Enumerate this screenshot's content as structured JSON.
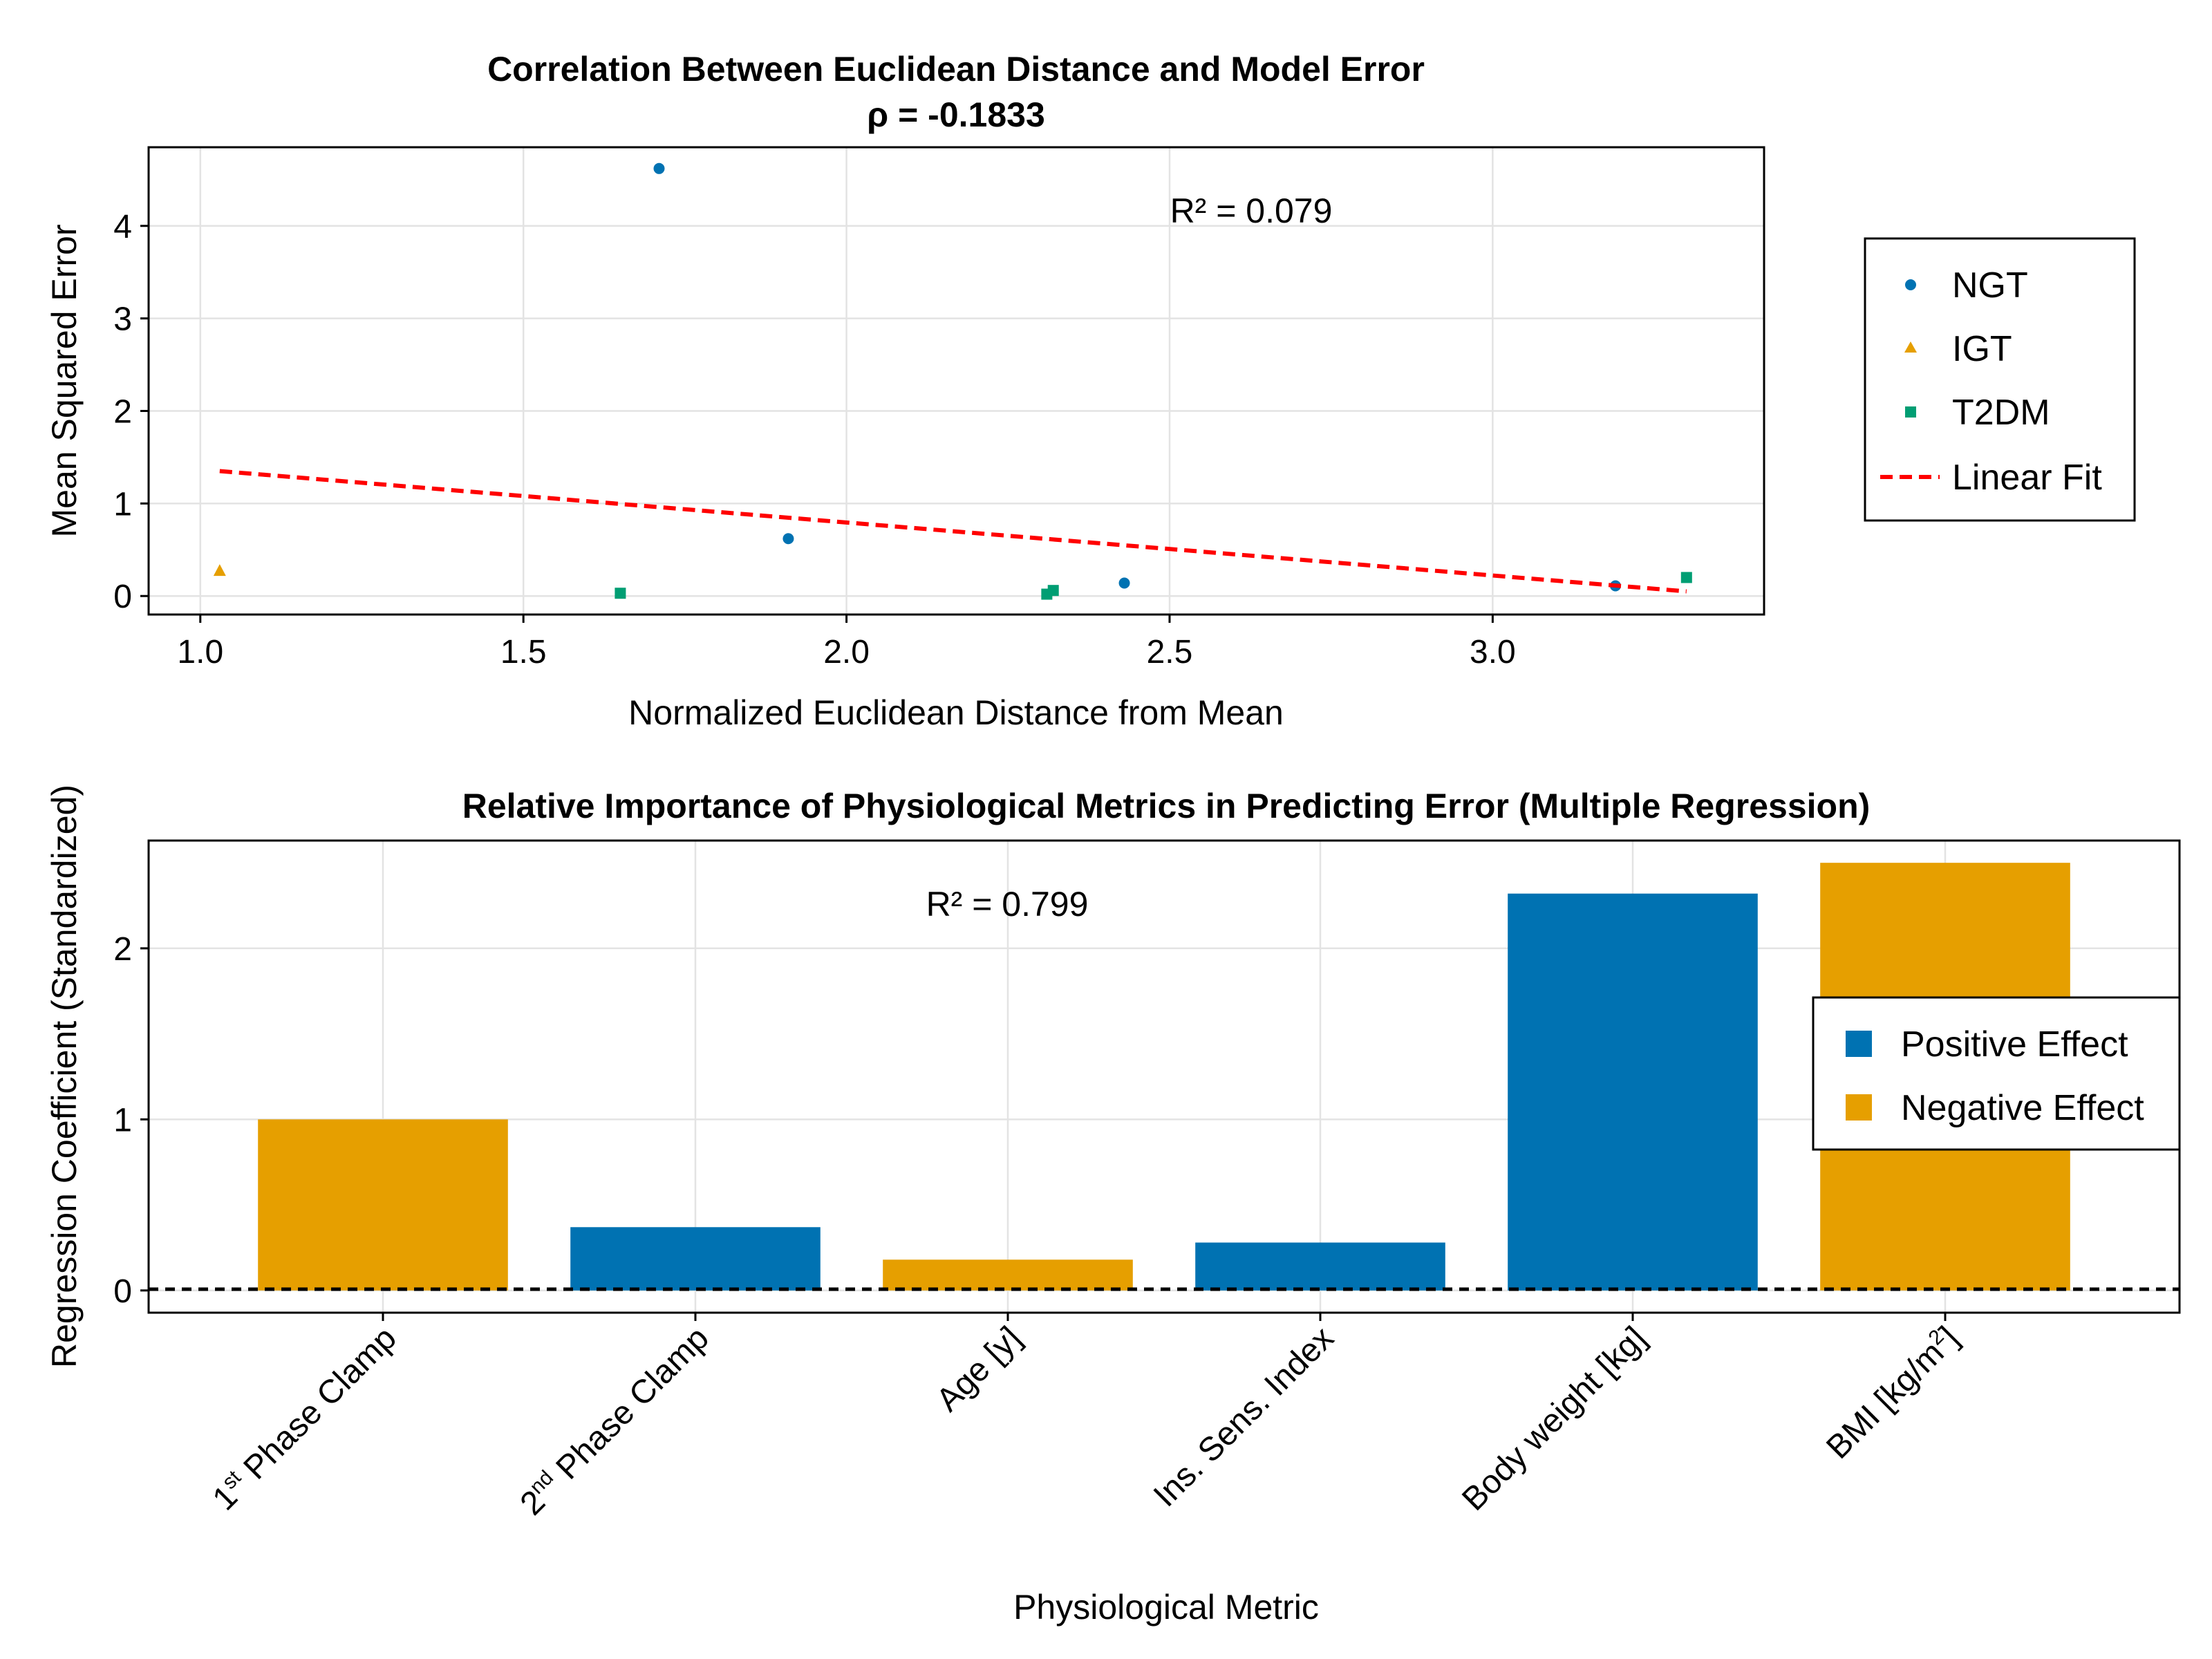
{
  "chart_data": [
    {
      "type": "scatter",
      "title": "Correlation Between Euclidean Distance and Model Error",
      "subtitle": "ρ = -0.1833",
      "xlabel": "Normalized Euclidean Distance from Mean",
      "ylabel": "Mean Squared Error",
      "xlim": [
        0.92,
        3.42
      ],
      "ylim": [
        -0.2,
        4.85
      ],
      "xticks": [
        "1.0",
        "1.5",
        "2.0",
        "2.5",
        "3.0"
      ],
      "yticks": [
        "0",
        "1",
        "2",
        "3",
        "4"
      ],
      "grid": true,
      "annotation": "R² = 0.079",
      "legend_position": "right",
      "series": [
        {
          "name": "NGT",
          "marker": "circle",
          "color": "#0072b2",
          "points": [
            {
              "x": 1.71,
              "y": 4.62
            },
            {
              "x": 1.91,
              "y": 0.62
            },
            {
              "x": 2.43,
              "y": 0.14
            },
            {
              "x": 3.19,
              "y": 0.11
            }
          ]
        },
        {
          "name": "IGT",
          "marker": "triangle",
          "color": "#e69f00",
          "points": [
            {
              "x": 1.03,
              "y": 0.27
            }
          ]
        },
        {
          "name": "T2DM",
          "marker": "square",
          "color": "#009e73",
          "points": [
            {
              "x": 1.65,
              "y": 0.03
            },
            {
              "x": 2.31,
              "y": 0.02
            },
            {
              "x": 2.32,
              "y": 0.06
            },
            {
              "x": 3.3,
              "y": 0.2
            }
          ]
        },
        {
          "name": "Linear Fit",
          "style": "dashed",
          "color": "#ff0000",
          "line": [
            {
              "x": 1.03,
              "y": 1.35
            },
            {
              "x": 3.3,
              "y": 0.05
            }
          ]
        }
      ]
    },
    {
      "type": "bar",
      "title": "Relative Importance of Physiological Metrics in Predicting Error (Multiple Regression)",
      "xlabel": "Physiological Metric",
      "ylabel": "Regression Coefficient (Standardized)",
      "ylim": [
        -0.13,
        2.63
      ],
      "yticks": [
        "0",
        "1",
        "2"
      ],
      "grid": true,
      "annotation": "R² = 0.799",
      "reference_line": {
        "y": 0,
        "style": "dashed",
        "color": "#000000"
      },
      "legend_position": "right",
      "legend": [
        {
          "name": "Positive Effect",
          "color": "#0072b2"
        },
        {
          "name": "Negative Effect",
          "color": "#e69f00"
        }
      ],
      "categories": [
        {
          "base": "1",
          "sup": "st",
          "rest": " Phase Clamp"
        },
        {
          "base": "2",
          "sup": "nd",
          "rest": " Phase Clamp"
        },
        {
          "base": "Age [y]",
          "sup": "",
          "rest": ""
        },
        {
          "base": "Ins. Sens. Index",
          "sup": "",
          "rest": ""
        },
        {
          "base": "Body weight [kg]",
          "sup": "",
          "rest": ""
        },
        {
          "base": "BMI [kg/m",
          "sup": "2",
          "rest": "]"
        }
      ],
      "values": [
        1.0,
        0.37,
        0.18,
        0.28,
        2.32,
        2.5
      ],
      "effects": [
        "Negative Effect",
        "Positive Effect",
        "Negative Effect",
        "Positive Effect",
        "Positive Effect",
        "Negative Effect"
      ],
      "colors": [
        "#e69f00",
        "#0072b2",
        "#e69f00",
        "#0072b2",
        "#0072b2",
        "#e69f00"
      ]
    }
  ]
}
